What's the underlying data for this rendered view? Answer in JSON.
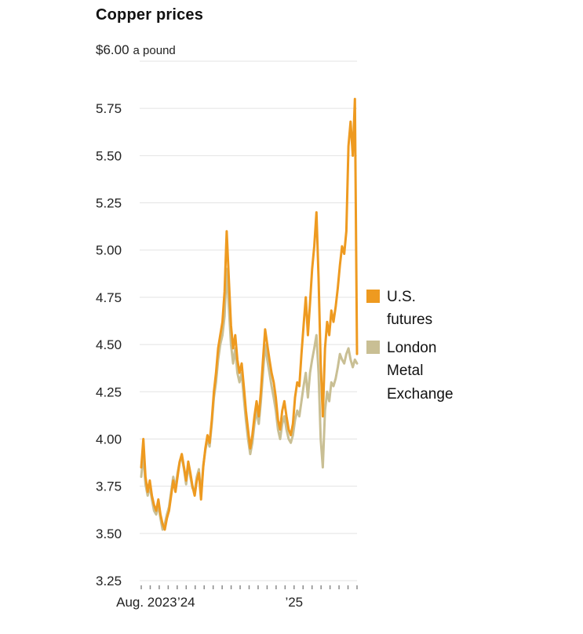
{
  "chart_data": {
    "type": "line",
    "title": "Copper prices",
    "ylabel": "$ a pound",
    "ylim": [
      3.25,
      6.0
    ],
    "yticks": [
      3.25,
      3.5,
      3.75,
      4.0,
      4.25,
      4.5,
      4.75,
      5.0,
      5.25,
      5.5,
      5.75,
      6.0
    ],
    "y_axis_top": {
      "value": "$6.00",
      "suffix": "a pound"
    },
    "grid": "horizontal",
    "legend_position": "right",
    "x_axis": {
      "months_total": 24,
      "start": "Aug. 2023",
      "labels": [
        {
          "text": "Aug. 2023",
          "month": 0.6
        },
        {
          "text": "’24",
          "month": 5
        },
        {
          "text": "’25",
          "month": 17
        }
      ]
    },
    "series": [
      {
        "id": "us-futures",
        "name": "U.S. futures",
        "color": "#EE9A20",
        "values": [
          3.85,
          4.0,
          3.8,
          3.72,
          3.78,
          3.7,
          3.65,
          3.62,
          3.68,
          3.6,
          3.55,
          3.52,
          3.58,
          3.62,
          3.7,
          3.78,
          3.72,
          3.8,
          3.88,
          3.92,
          3.85,
          3.78,
          3.88,
          3.82,
          3.75,
          3.7,
          3.78,
          3.82,
          3.68,
          3.85,
          3.95,
          4.02,
          3.98,
          4.1,
          4.25,
          4.35,
          4.48,
          4.55,
          4.62,
          4.78,
          5.1,
          4.85,
          4.6,
          4.48,
          4.55,
          4.42,
          4.35,
          4.4,
          4.28,
          4.15,
          4.05,
          3.95,
          4.02,
          4.12,
          4.2,
          4.12,
          4.25,
          4.42,
          4.58,
          4.5,
          4.42,
          4.35,
          4.3,
          4.22,
          4.1,
          4.05,
          4.15,
          4.2,
          4.12,
          4.05,
          4.02,
          4.08,
          4.22,
          4.3,
          4.28,
          4.45,
          4.6,
          4.75,
          4.55,
          4.72,
          4.9,
          5.02,
          5.2,
          4.85,
          4.4,
          4.12,
          4.48,
          4.62,
          4.55,
          4.68,
          4.62,
          4.7,
          4.8,
          4.92,
          5.02,
          4.98,
          5.1,
          5.55,
          5.68,
          5.5,
          5.8,
          4.45
        ]
      },
      {
        "id": "lme",
        "name": "London Metal Exchange",
        "color": "#C9BF94",
        "values": [
          3.8,
          3.92,
          3.76,
          3.7,
          3.75,
          3.68,
          3.62,
          3.6,
          3.65,
          3.58,
          3.52,
          3.55,
          3.6,
          3.64,
          3.72,
          3.8,
          3.74,
          3.82,
          3.88,
          3.9,
          3.84,
          3.76,
          3.86,
          3.8,
          3.74,
          3.72,
          3.8,
          3.84,
          3.7,
          3.86,
          3.94,
          4.0,
          3.96,
          4.08,
          4.22,
          4.3,
          4.42,
          4.5,
          4.55,
          4.65,
          4.9,
          4.7,
          4.5,
          4.4,
          4.48,
          4.35,
          4.3,
          4.35,
          4.22,
          4.1,
          4.0,
          3.92,
          3.98,
          4.08,
          4.15,
          4.08,
          4.2,
          4.35,
          4.5,
          4.42,
          4.35,
          4.28,
          4.22,
          4.15,
          4.05,
          4.0,
          4.08,
          4.12,
          4.05,
          4.0,
          3.98,
          4.02,
          4.1,
          4.15,
          4.12,
          4.2,
          4.28,
          4.35,
          4.22,
          4.35,
          4.42,
          4.48,
          4.55,
          4.35,
          4.0,
          3.85,
          4.15,
          4.25,
          4.2,
          4.3,
          4.28,
          4.32,
          4.38,
          4.45,
          4.42,
          4.4,
          4.45,
          4.48,
          4.42,
          4.38,
          4.42,
          4.4
        ]
      }
    ]
  }
}
